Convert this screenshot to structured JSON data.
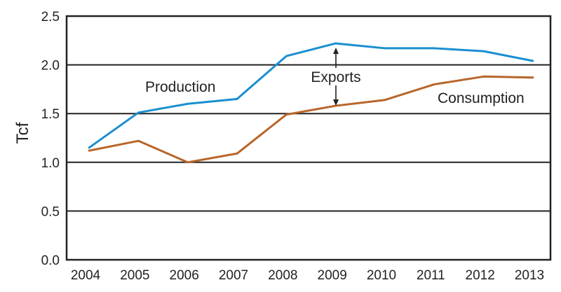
{
  "chart_data": {
    "type": "line",
    "title": "",
    "xlabel": "",
    "ylabel": "Tcf",
    "ylim": [
      0.0,
      2.5
    ],
    "y_ticks": [
      "0.0",
      "0.5",
      "1.0",
      "1.5",
      "2.0",
      "2.5"
    ],
    "categories": [
      "2004",
      "2005",
      "2006",
      "2007",
      "2008",
      "2009",
      "2010",
      "2011",
      "2012",
      "2013"
    ],
    "grid": true,
    "series": [
      {
        "name": "Production",
        "color": "#1a8fd0",
        "values": [
          1.15,
          1.51,
          1.6,
          1.65,
          2.09,
          2.22,
          2.17,
          2.17,
          2.14,
          2.04
        ]
      },
      {
        "name": "Consumption",
        "color": "#b8652a",
        "values": [
          1.12,
          1.22,
          1.0,
          1.09,
          1.49,
          1.58,
          1.64,
          1.8,
          1.88,
          1.87
        ]
      }
    ],
    "annotations": {
      "production_label": "Production",
      "consumption_label": "Consumption",
      "exports_label": "Exports"
    }
  }
}
